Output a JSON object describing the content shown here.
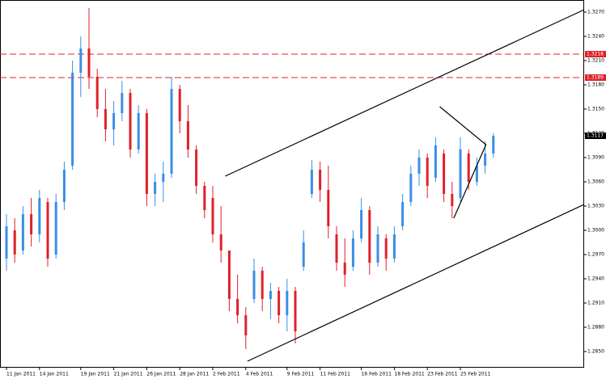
{
  "chart_data": {
    "type": "candlestick",
    "up_color": "#3a8ee6",
    "down_color": "#e0202a",
    "ylim": [
      1.283,
      1.3285
    ],
    "yticks": [
      {
        "value": 1.285,
        "label": "1.2850"
      },
      {
        "value": 1.288,
        "label": "1.2880"
      },
      {
        "value": 1.291,
        "label": "1.2910"
      },
      {
        "value": 1.294,
        "label": "1.2940"
      },
      {
        "value": 1.297,
        "label": "1.2970"
      },
      {
        "value": 1.3,
        "label": "1.3000"
      },
      {
        "value": 1.303,
        "label": "1.3030"
      },
      {
        "value": 1.306,
        "label": "1.3060"
      },
      {
        "value": 1.309,
        "label": "1.3090"
      },
      {
        "value": 1.312,
        "label": "1.3120"
      },
      {
        "value": 1.315,
        "label": "1.3150"
      },
      {
        "value": 1.318,
        "label": "1.3180"
      },
      {
        "value": 1.321,
        "label": "1.3210"
      },
      {
        "value": 1.324,
        "label": "1.3240"
      },
      {
        "value": 1.327,
        "label": "1.3270"
      }
    ],
    "xticks": [
      {
        "value": 0,
        "label": "11 Jan 2011"
      },
      {
        "value": 4,
        "label": "14 Jan 2011"
      },
      {
        "value": 9,
        "label": "19 Jan 2011"
      },
      {
        "value": 13,
        "label": "21 Jan 2011"
      },
      {
        "value": 17,
        "label": "26 Jan 2011"
      },
      {
        "value": 21,
        "label": "28 Jan 2011"
      },
      {
        "value": 25,
        "label": "2 Feb 2011"
      },
      {
        "value": 29,
        "label": "4 Feb 2011"
      },
      {
        "value": 34,
        "label": "9 Feb 2011"
      },
      {
        "value": 38,
        "label": "11 Feb 2011"
      },
      {
        "value": 43,
        "label": "16 Feb 2011"
      },
      {
        "value": 47,
        "label": "18 Feb 2011"
      },
      {
        "value": 51,
        "label": "23 Feb 2011"
      },
      {
        "value": 55,
        "label": "25 Feb 2011"
      }
    ],
    "candles": [
      [
        1.2965,
        1.302,
        1.295,
        1.3005
      ],
      [
        1.3,
        1.3015,
        1.296,
        1.297
      ],
      [
        1.2975,
        1.303,
        1.297,
        1.302
      ],
      [
        1.302,
        1.304,
        1.298,
        1.2995
      ],
      [
        1.2995,
        1.305,
        1.2985,
        1.304
      ],
      [
        1.3035,
        1.304,
        1.2955,
        1.2965
      ],
      [
        1.297,
        1.3045,
        1.2965,
        1.3035
      ],
      [
        1.3035,
        1.3085,
        1.3025,
        1.3075
      ],
      [
        1.308,
        1.321,
        1.3075,
        1.3195
      ],
      [
        1.3195,
        1.324,
        1.3165,
        1.3225
      ],
      [
        1.3225,
        1.3275,
        1.3175,
        1.319
      ],
      [
        1.319,
        1.32,
        1.314,
        1.315
      ],
      [
        1.315,
        1.3175,
        1.311,
        1.3125
      ],
      [
        1.3125,
        1.316,
        1.3105,
        1.3145
      ],
      [
        1.3145,
        1.3185,
        1.3135,
        1.317
      ],
      [
        1.317,
        1.3175,
        1.309,
        1.31
      ],
      [
        1.31,
        1.3155,
        1.3095,
        1.3145
      ],
      [
        1.3145,
        1.315,
        1.303,
        1.3045
      ],
      [
        1.3045,
        1.307,
        1.303,
        1.306
      ],
      [
        1.306,
        1.3085,
        1.3035,
        1.307
      ],
      [
        1.307,
        1.319,
        1.3065,
        1.3175
      ],
      [
        1.3175,
        1.318,
        1.312,
        1.3135
      ],
      [
        1.3135,
        1.3155,
        1.309,
        1.31
      ],
      [
        1.31,
        1.3105,
        1.3045,
        1.3055
      ],
      [
        1.3055,
        1.306,
        1.3015,
        1.3025
      ],
      [
        1.304,
        1.3055,
        1.2985,
        1.2995
      ],
      [
        1.2995,
        1.303,
        1.296,
        1.2975
      ],
      [
        1.2975,
        1.2975,
        1.29,
        1.2915
      ],
      [
        1.2915,
        1.2945,
        1.2885,
        1.2895
      ],
      [
        1.2895,
        1.2905,
        1.2853,
        1.287
      ],
      [
        1.2915,
        1.2965,
        1.291,
        1.295
      ],
      [
        1.295,
        1.2955,
        1.29,
        1.2915
      ],
      [
        1.2915,
        1.2935,
        1.289,
        1.2925
      ],
      [
        1.2925,
        1.293,
        1.2885,
        1.2895
      ],
      [
        1.2895,
        1.294,
        1.2875,
        1.2925
      ],
      [
        1.2925,
        1.293,
        1.286,
        1.2875
      ],
      [
        1.2955,
        1.3,
        1.295,
        1.2985
      ],
      [
        1.3045,
        1.3087,
        1.304,
        1.3075
      ],
      [
        1.3075,
        1.3085,
        1.3035,
        1.305
      ],
      [
        1.305,
        1.308,
        1.299,
        1.3005
      ],
      [
        1.2995,
        1.3005,
        1.295,
        1.296
      ],
      [
        1.296,
        1.299,
        1.293,
        1.2945
      ],
      [
        1.2955,
        1.3,
        1.295,
        1.299
      ],
      [
        1.299,
        1.304,
        1.2985,
        1.3025
      ],
      [
        1.3025,
        1.303,
        1.2945,
        1.296
      ],
      [
        1.296,
        1.3005,
        1.2955,
        1.2995
      ],
      [
        1.299,
        1.2995,
        1.295,
        1.2965
      ],
      [
        1.2965,
        1.3005,
        1.296,
        1.2995
      ],
      [
        1.3005,
        1.3045,
        1.3,
        1.3035
      ],
      [
        1.3035,
        1.308,
        1.303,
        1.307
      ],
      [
        1.307,
        1.31,
        1.3055,
        1.309
      ],
      [
        1.309,
        1.3095,
        1.304,
        1.3055
      ],
      [
        1.3065,
        1.3115,
        1.306,
        1.3105
      ],
      [
        1.3095,
        1.31,
        1.3035,
        1.3045
      ],
      [
        1.3045,
        1.306,
        1.3015,
        1.303
      ],
      [
        1.304,
        1.3115,
        1.3035,
        1.31
      ],
      [
        1.3095,
        1.31,
        1.305,
        1.306
      ],
      [
        1.306,
        1.309,
        1.3055,
        1.308
      ],
      [
        1.308,
        1.311,
        1.307,
        1.3095
      ],
      [
        1.3095,
        1.312,
        1.309,
        1.3117
      ]
    ],
    "levels": [
      {
        "value": 1.3218,
        "label": "1.3218",
        "color": "#e0202a"
      },
      {
        "value": 1.3189,
        "label": "1.3189",
        "color": "#e0202a"
      }
    ],
    "current_price": {
      "value": 1.3117,
      "label": "1.3117"
    },
    "trend_lines": [
      {
        "x": [
          26.5,
          70
        ],
        "y": [
          1.3067,
          1.3273
        ]
      },
      {
        "x": [
          29.2,
          70
        ],
        "y": [
          1.2838,
          1.3032
        ]
      },
      {
        "x": [
          52.5,
          58.1,
          54.2
        ],
        "y": [
          1.3153,
          1.3106,
          1.3015
        ]
      }
    ]
  }
}
